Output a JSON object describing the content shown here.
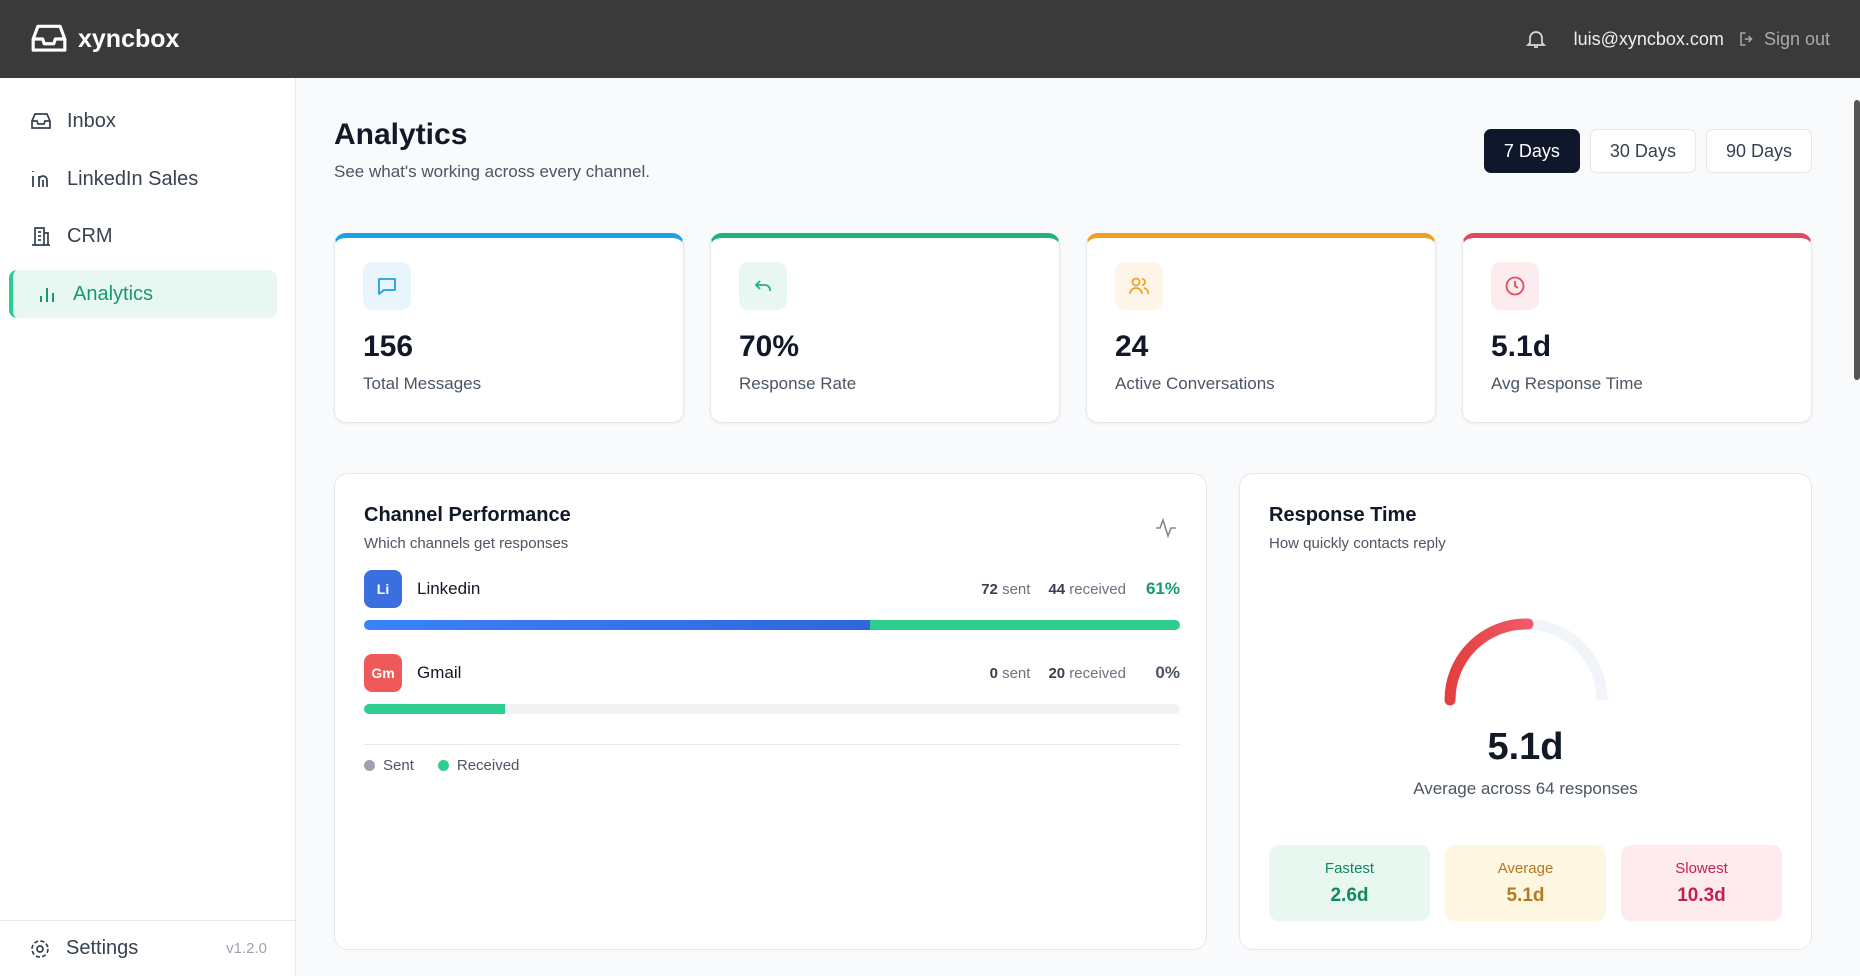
{
  "header": {
    "brand": "xyncbox",
    "email": "luis@xyncbox.com",
    "sign_out": "Sign out"
  },
  "sidebar": {
    "nav": [
      "Inbox",
      "LinkedIn Sales",
      "CRM",
      "Analytics"
    ],
    "active": 3,
    "settings": "Settings",
    "version": "v1.2.0"
  },
  "page": {
    "title": "Analytics",
    "subtitle": "See what's working across every channel.",
    "ranges": [
      "7 Days",
      "30 Days",
      "90 Days"
    ],
    "active_range": 0
  },
  "stats": [
    {
      "value": "156",
      "label": "Total Messages",
      "color": "#1ea0e6"
    },
    {
      "value": "70%",
      "label": "Response Rate",
      "color": "#1fb37a"
    },
    {
      "value": "24",
      "label": "Active Conversations",
      "color": "#f0a020"
    },
    {
      "value": "5.1d",
      "label": "Avg Response Time",
      "color": "#e5485d"
    }
  ],
  "channels": {
    "title": "Channel Performance",
    "subtitle": "Which channels get responses",
    "sent_word": "sent",
    "received_word": "received",
    "items": [
      {
        "badge": "Li",
        "name": "Linkedin",
        "sent": 72,
        "received": 44,
        "rate": "61%",
        "badge_color": "#3b6fe0"
      },
      {
        "badge": "Gm",
        "name": "Gmail",
        "sent": 0,
        "received": 20,
        "rate": "0%",
        "badge_color": "#ee5a5a"
      }
    ],
    "legend": [
      "Sent",
      "Received"
    ],
    "sent_color": "#3066dc",
    "received_color": "#2ecc8f"
  },
  "response": {
    "title": "Response Time",
    "subtitle": "How quickly contacts reply",
    "value": "5.1d",
    "caption": "Average across 64 responses",
    "tiles": [
      {
        "label": "Fastest",
        "value": "2.6d",
        "bg": "#e8f8f0",
        "fg": "#0e8a5f"
      },
      {
        "label": "Average",
        "value": "5.1d",
        "bg": "#fdf6e0",
        "fg": "#b7791f"
      },
      {
        "label": "Slowest",
        "value": "10.3d",
        "bg": "#fdebee",
        "fg": "#c81e4a"
      }
    ]
  }
}
